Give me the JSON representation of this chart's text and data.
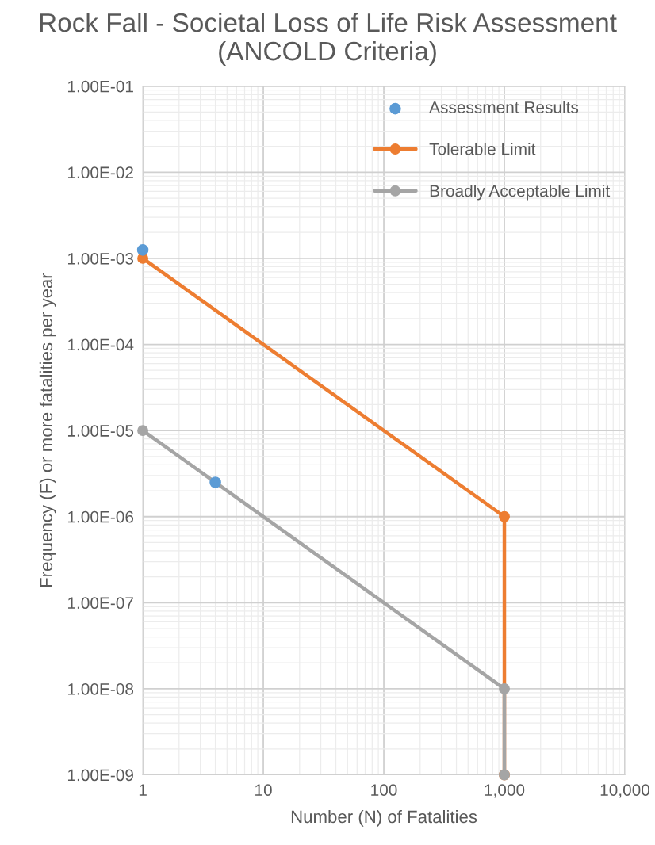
{
  "chart_data": {
    "type": "line",
    "title": "Rock Fall - Societal Loss of Life Risk Assessment (ANCOLD Criteria)",
    "xlabel": "Number (N) of Fatalities",
    "ylabel": "Frequency (F) or more fatalities per year",
    "log": "xy",
    "grid": true,
    "legend": "top right",
    "marker": "circle",
    "xlim": [
      1,
      10000
    ],
    "xticks": [
      1,
      10,
      100,
      {
        "value": 1000,
        "label": "1,000"
      },
      {
        "value": 10000,
        "label": "10,000"
      }
    ],
    "ylim": [
      1e-09,
      0.1
    ],
    "yticks": [
      {
        "value": 1e-09,
        "label": "1.00E-09"
      },
      {
        "value": 1e-08,
        "label": "1.00E-08"
      },
      {
        "value": 1e-07,
        "label": "1.00E-07"
      },
      {
        "value": 1e-06,
        "label": "1.00E-06"
      },
      {
        "value": 1e-05,
        "label": "1.00E-05"
      },
      {
        "value": 0.0001,
        "label": "1.00E-04"
      },
      {
        "value": 0.001,
        "label": "1.00E-03"
      },
      {
        "value": 0.01,
        "label": "1.00E-02"
      },
      {
        "value": 0.1,
        "label": "1.00E-01"
      }
    ],
    "series": [
      {
        "name": "Assessment Results",
        "type": "scatter",
        "color": "#5b9bd5",
        "x": [
          1,
          4
        ],
        "values": [
          0.00125,
          2.5e-06
        ]
      },
      {
        "name": "Tolerable Limit",
        "color": "#ed7d31",
        "x": [
          1,
          1000,
          1000
        ],
        "values": [
          0.001,
          1e-06,
          1e-09
        ]
      },
      {
        "name": "Broadly Acceptable Limit",
        "color": "#a5a5a5",
        "x": [
          1,
          1000,
          1000
        ],
        "values": [
          1e-05,
          1e-08,
          1e-09
        ]
      }
    ]
  }
}
